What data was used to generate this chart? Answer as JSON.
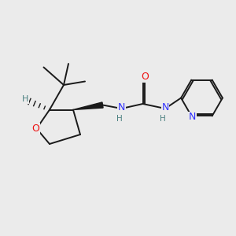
{
  "background_color": "#ebebeb",
  "bond_color": "#1a1a1a",
  "N_color": "#3030ff",
  "O_color": "#ee1010",
  "H_color": "#4a8080",
  "figsize": [
    3.0,
    3.0
  ],
  "dpi": 100,
  "xlim": [
    0,
    10
  ],
  "ylim": [
    0,
    10
  ]
}
